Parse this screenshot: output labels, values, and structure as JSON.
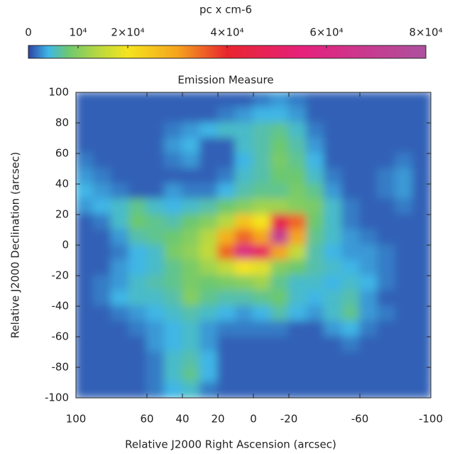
{
  "chart_data": {
    "type": "heatmap",
    "title": "Emission Measure",
    "colorbar_label": "pc x cm-6",
    "x_label": "Relative J2000 Right Ascension (arcsec)",
    "y_label": "Relative J2000 Declination (arcsec)",
    "xlim": [
      100,
      -100
    ],
    "ylim": [
      -100,
      100
    ],
    "xticks": [
      100,
      60,
      40,
      20,
      0,
      -20,
      -60,
      -100
    ],
    "yticks": [
      100,
      80,
      60,
      40,
      20,
      0,
      -20,
      -40,
      -60,
      -80,
      -100
    ],
    "x": [
      95,
      85,
      75,
      65,
      55,
      45,
      35,
      25,
      15,
      5,
      -5,
      -15,
      -25,
      -35,
      -45,
      -55,
      -65,
      -75,
      -85,
      -95
    ],
    "y": [
      95,
      85,
      75,
      65,
      55,
      45,
      35,
      25,
      15,
      5,
      -5,
      -15,
      -25,
      -35,
      -45,
      -55,
      -65,
      -75,
      -85,
      -95
    ],
    "values": [
      [
        1000,
        1000,
        1000,
        1000,
        1000,
        1000,
        1000,
        1000,
        1000,
        1000,
        2000,
        3000,
        2000,
        1000,
        1000,
        1000,
        1000,
        1000,
        1000,
        1000
      ],
      [
        1000,
        1000,
        1000,
        1000,
        1000,
        1000,
        1000,
        1000,
        2000,
        3000,
        4000,
        4000,
        3000,
        1000,
        1000,
        1000,
        1000,
        1000,
        1000,
        1000
      ],
      [
        1000,
        1000,
        1000,
        1000,
        1000,
        2000,
        3000,
        4000,
        5000,
        5000,
        6000,
        7000,
        5000,
        2000,
        1000,
        1000,
        1000,
        1000,
        1000,
        1000
      ],
      [
        1000,
        1000,
        1000,
        1000,
        1000,
        3000,
        4000,
        1000,
        1000,
        5000,
        6000,
        8000,
        6000,
        3000,
        1000,
        1000,
        1000,
        1000,
        1000,
        1000
      ],
      [
        2000,
        1000,
        1000,
        1000,
        1000,
        2000,
        3000,
        1000,
        1000,
        4000,
        6000,
        9000,
        7000,
        4000,
        1000,
        1000,
        1000,
        1000,
        2000,
        1000
      ],
      [
        3000,
        2000,
        1000,
        1000,
        1000,
        1000,
        1000,
        1000,
        2000,
        5000,
        6000,
        8000,
        8000,
        5000,
        2000,
        1000,
        1000,
        2000,
        3000,
        1000
      ],
      [
        4000,
        3000,
        2000,
        1000,
        1000,
        3000,
        2000,
        2000,
        4000,
        6000,
        7000,
        7000,
        9000,
        7000,
        3000,
        1000,
        1000,
        2000,
        3000,
        1000
      ],
      [
        3000,
        4000,
        5000,
        7000,
        5000,
        4000,
        5000,
        6000,
        8000,
        10000,
        12000,
        12000,
        10000,
        9000,
        5000,
        2000,
        1000,
        1000,
        2000,
        1000
      ],
      [
        1000,
        2000,
        5000,
        8000,
        7000,
        6000,
        8000,
        10000,
        14000,
        25000,
        20000,
        45000,
        35000,
        8000,
        5000,
        2000,
        1000,
        1000,
        1000,
        1000
      ],
      [
        1000,
        1000,
        3000,
        6000,
        7000,
        8000,
        10000,
        14000,
        28000,
        35000,
        30000,
        70000,
        30000,
        7000,
        5000,
        3000,
        2000,
        1000,
        1000,
        1000
      ],
      [
        1000,
        1000,
        2000,
        4000,
        5000,
        9000,
        11000,
        15000,
        35000,
        60000,
        50000,
        30000,
        15000,
        6000,
        4000,
        3000,
        3000,
        2000,
        1000,
        1000
      ],
      [
        1000,
        1000,
        3000,
        4000,
        5000,
        7000,
        9000,
        12000,
        15000,
        20000,
        18000,
        10000,
        8000,
        6000,
        5000,
        4000,
        3000,
        2000,
        1000,
        1000
      ],
      [
        1000,
        2000,
        3000,
        5000,
        6000,
        7000,
        9000,
        8000,
        9000,
        10000,
        12000,
        7000,
        5000,
        5000,
        4000,
        5000,
        4000,
        2000,
        1000,
        1000
      ],
      [
        1000,
        2000,
        4000,
        5000,
        5000,
        6000,
        10000,
        7000,
        6000,
        6000,
        7000,
        8000,
        5000,
        4000,
        5000,
        6000,
        3000,
        1000,
        1000,
        1000
      ],
      [
        1000,
        1000,
        2000,
        3000,
        4000,
        5000,
        6000,
        5000,
        4000,
        3000,
        4000,
        6000,
        4000,
        3000,
        5000,
        7000,
        3000,
        2000,
        1000,
        1000
      ],
      [
        1000,
        1000,
        1000,
        2000,
        3000,
        4000,
        5000,
        3000,
        2000,
        2000,
        2000,
        2000,
        1000,
        1000,
        3000,
        4000,
        2000,
        1000,
        1000,
        1000
      ],
      [
        1000,
        1000,
        1000,
        1000,
        3000,
        4000,
        5000,
        3000,
        1000,
        1000,
        1000,
        1000,
        1000,
        1000,
        1000,
        2000,
        1000,
        1000,
        1000,
        1000
      ],
      [
        1000,
        1000,
        1000,
        1000,
        2000,
        5000,
        6000,
        4000,
        1000,
        1000,
        1000,
        1000,
        1000,
        1000,
        1000,
        1000,
        1000,
        1000,
        1000,
        1000
      ],
      [
        1000,
        1000,
        1000,
        1000,
        2000,
        5000,
        7000,
        4000,
        1000,
        1000,
        1000,
        1000,
        1000,
        1000,
        1000,
        1000,
        1000,
        1000,
        1000,
        1000
      ],
      [
        1000,
        1000,
        1000,
        1000,
        2000,
        4000,
        5000,
        2000,
        1000,
        1000,
        1000,
        1000,
        1000,
        1000,
        1000,
        1000,
        1000,
        1000,
        1000,
        1000
      ]
    ],
    "clim": [
      0,
      80000
    ],
    "cticks": [
      0,
      {
        "value": 10000,
        "label": "10⁴"
      },
      {
        "value": 20000,
        "label": "2×10⁴"
      },
      {
        "value": 40000,
        "label": "4×10⁴"
      },
      {
        "value": 60000,
        "label": "6×10⁴"
      },
      {
        "value": 80000,
        "label": "8×10⁴"
      }
    ],
    "colorscale": {
      "stops": [
        0,
        4000,
        8000,
        14000,
        20000,
        30000,
        40000,
        55000,
        80000
      ],
      "colors": [
        "#2c43a6",
        "#3fb6e6",
        "#6cc870",
        "#b8d840",
        "#f5e41e",
        "#f5a41e",
        "#e8252e",
        "#e6207c",
        "#ad519f"
      ]
    }
  }
}
